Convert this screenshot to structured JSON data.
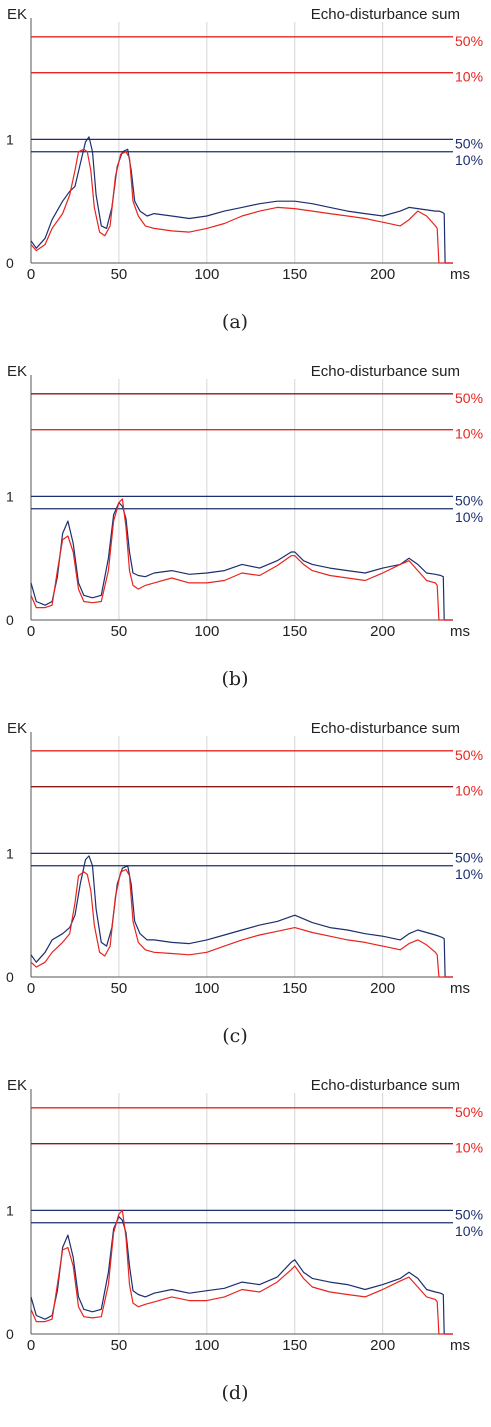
{
  "colors": {
    "blue": "#1c2f6e",
    "red": "#e8241f",
    "dark_red": "#8b1a1a",
    "grid": "#d6d6d6",
    "axis": "#555555"
  },
  "chart_data": [
    {
      "type": "line",
      "panel_label": "(a)",
      "title": "Echo-disturbance sum",
      "ylabel": "EK",
      "xlabel": "ms",
      "xlim": [
        0,
        240
      ],
      "ylim": [
        0,
        1.95
      ],
      "x_ticks": [
        "0",
        "50",
        "100",
        "150",
        "200"
      ],
      "y_ticks": [
        "0",
        "1"
      ],
      "threshold_lines": [
        {
          "label": "50%",
          "value": 1.83,
          "color": "red"
        },
        {
          "label": "10%",
          "value": 1.54,
          "color": "red"
        },
        {
          "label": "50%",
          "value": 1.0,
          "color": "blue"
        },
        {
          "label": "10%",
          "value": 0.9,
          "color": "blue"
        }
      ],
      "series": [
        {
          "color": "blue",
          "x": [
            0,
            3,
            8,
            12,
            18,
            22,
            25,
            28,
            31,
            33,
            35,
            37,
            40,
            43,
            46,
            49,
            52,
            55,
            57,
            59,
            62,
            66,
            70,
            80,
            90,
            100,
            110,
            120,
            130,
            140,
            150,
            160,
            170,
            180,
            190,
            200,
            210,
            215,
            220,
            225,
            230,
            232,
            234,
            235,
            235.5,
            240
          ],
          "y": [
            0.18,
            0.12,
            0.2,
            0.35,
            0.5,
            0.58,
            0.62,
            0.8,
            0.98,
            1.02,
            0.9,
            0.55,
            0.3,
            0.28,
            0.45,
            0.78,
            0.9,
            0.92,
            0.75,
            0.5,
            0.42,
            0.38,
            0.4,
            0.38,
            0.36,
            0.38,
            0.42,
            0.45,
            0.48,
            0.5,
            0.5,
            0.48,
            0.45,
            0.42,
            0.4,
            0.38,
            0.42,
            0.45,
            0.44,
            0.43,
            0.42,
            0.42,
            0.41,
            0.4,
            0.0,
            0.0
          ]
        },
        {
          "color": "red",
          "x": [
            0,
            3,
            8,
            12,
            18,
            22,
            25,
            27,
            30,
            32,
            34,
            36,
            39,
            42,
            45,
            48,
            51,
            54,
            56,
            58,
            61,
            65,
            70,
            80,
            90,
            100,
            110,
            120,
            130,
            140,
            150,
            160,
            170,
            180,
            190,
            200,
            210,
            215,
            220,
            225,
            230,
            231,
            232,
            240
          ],
          "y": [
            0.15,
            0.1,
            0.15,
            0.28,
            0.4,
            0.55,
            0.75,
            0.9,
            0.92,
            0.9,
            0.75,
            0.45,
            0.25,
            0.22,
            0.3,
            0.7,
            0.88,
            0.9,
            0.85,
            0.5,
            0.38,
            0.3,
            0.28,
            0.26,
            0.25,
            0.28,
            0.32,
            0.38,
            0.42,
            0.45,
            0.44,
            0.42,
            0.4,
            0.38,
            0.36,
            0.33,
            0.3,
            0.35,
            0.42,
            0.38,
            0.3,
            0.28,
            0.0,
            0.0
          ]
        }
      ]
    },
    {
      "type": "line",
      "panel_label": "(b)",
      "title": "Echo-disturbance sum",
      "ylabel": "EK",
      "xlabel": "ms",
      "xlim": [
        0,
        240
      ],
      "ylim": [
        0,
        1.95
      ],
      "x_ticks": [
        "0",
        "50",
        "100",
        "150",
        "200"
      ],
      "y_ticks": [
        "0",
        "1"
      ],
      "threshold_lines": [
        {
          "label": "50%",
          "value": 1.83,
          "color": "dark_red"
        },
        {
          "label": "10%",
          "value": 1.54,
          "color": "red"
        },
        {
          "label": "50%",
          "value": 1.0,
          "color": "blue"
        },
        {
          "label": "10%",
          "value": 0.9,
          "color": "blue"
        }
      ],
      "series": [
        {
          "color": "blue",
          "x": [
            0,
            3,
            8,
            12,
            15,
            18,
            21,
            24,
            27,
            30,
            35,
            40,
            44,
            47,
            50,
            52,
            54,
            56,
            58,
            61,
            65,
            70,
            80,
            90,
            100,
            110,
            120,
            130,
            140,
            148,
            150,
            155,
            160,
            170,
            180,
            190,
            200,
            210,
            215,
            220,
            225,
            230,
            233,
            234.5,
            235,
            240
          ],
          "y": [
            0.3,
            0.15,
            0.12,
            0.15,
            0.35,
            0.7,
            0.8,
            0.62,
            0.3,
            0.2,
            0.18,
            0.2,
            0.5,
            0.85,
            0.95,
            0.92,
            0.82,
            0.55,
            0.38,
            0.36,
            0.35,
            0.38,
            0.4,
            0.37,
            0.38,
            0.4,
            0.45,
            0.42,
            0.48,
            0.55,
            0.55,
            0.48,
            0.45,
            0.42,
            0.4,
            0.38,
            0.42,
            0.45,
            0.5,
            0.45,
            0.38,
            0.37,
            0.36,
            0.35,
            0.0,
            0.0
          ]
        },
        {
          "color": "red",
          "x": [
            0,
            3,
            8,
            12,
            15,
            18,
            21,
            24,
            27,
            30,
            35,
            40,
            44,
            47,
            50,
            52,
            54,
            56,
            58,
            61,
            65,
            70,
            80,
            90,
            100,
            110,
            120,
            130,
            140,
            148,
            150,
            155,
            160,
            170,
            180,
            190,
            200,
            210,
            215,
            220,
            225,
            230,
            231,
            232,
            240
          ],
          "y": [
            0.2,
            0.1,
            0.1,
            0.12,
            0.4,
            0.65,
            0.68,
            0.55,
            0.25,
            0.15,
            0.14,
            0.15,
            0.4,
            0.8,
            0.95,
            0.98,
            0.75,
            0.4,
            0.28,
            0.25,
            0.28,
            0.3,
            0.34,
            0.3,
            0.3,
            0.32,
            0.38,
            0.36,
            0.44,
            0.52,
            0.52,
            0.45,
            0.4,
            0.36,
            0.34,
            0.32,
            0.38,
            0.45,
            0.48,
            0.4,
            0.32,
            0.3,
            0.28,
            0.0,
            0.0
          ]
        }
      ]
    },
    {
      "type": "line",
      "panel_label": "(c)",
      "title": "Echo-disturbance sum",
      "ylabel": "EK",
      "xlabel": "ms",
      "xlim": [
        0,
        240
      ],
      "ylim": [
        0,
        1.95
      ],
      "x_ticks": [
        "0",
        "50",
        "100",
        "150",
        "200"
      ],
      "y_ticks": [
        "0",
        "1"
      ],
      "threshold_lines": [
        {
          "label": "50%",
          "value": 1.83,
          "color": "red"
        },
        {
          "label": "10%",
          "value": 1.54,
          "color": "dark_red"
        },
        {
          "label": "50%",
          "value": 1.0,
          "color": "blue"
        },
        {
          "label": "10%",
          "value": 0.9,
          "color": "blue"
        }
      ],
      "series": [
        {
          "color": "blue",
          "x": [
            0,
            3,
            8,
            12,
            18,
            22,
            25,
            28,
            31,
            33,
            35,
            37,
            40,
            43,
            46,
            49,
            52,
            55,
            57,
            59,
            62,
            66,
            70,
            80,
            90,
            100,
            110,
            120,
            130,
            140,
            150,
            160,
            170,
            180,
            190,
            200,
            210,
            215,
            220,
            225,
            230,
            232,
            234,
            235,
            235.5,
            240
          ],
          "y": [
            0.18,
            0.12,
            0.2,
            0.3,
            0.35,
            0.4,
            0.5,
            0.75,
            0.95,
            0.98,
            0.9,
            0.55,
            0.28,
            0.25,
            0.4,
            0.75,
            0.88,
            0.9,
            0.75,
            0.45,
            0.35,
            0.3,
            0.3,
            0.28,
            0.27,
            0.3,
            0.34,
            0.38,
            0.42,
            0.45,
            0.5,
            0.44,
            0.4,
            0.38,
            0.35,
            0.33,
            0.3,
            0.35,
            0.38,
            0.36,
            0.34,
            0.33,
            0.32,
            0.31,
            0.0,
            0.0
          ]
        },
        {
          "color": "red",
          "x": [
            0,
            3,
            8,
            12,
            18,
            22,
            25,
            27,
            30,
            32,
            34,
            36,
            39,
            42,
            45,
            48,
            51,
            54,
            56,
            58,
            61,
            65,
            70,
            80,
            90,
            100,
            110,
            120,
            130,
            140,
            150,
            160,
            170,
            180,
            190,
            200,
            210,
            215,
            220,
            225,
            230,
            231,
            232,
            240
          ],
          "y": [
            0.12,
            0.08,
            0.12,
            0.2,
            0.28,
            0.35,
            0.6,
            0.82,
            0.85,
            0.83,
            0.7,
            0.42,
            0.2,
            0.17,
            0.25,
            0.65,
            0.85,
            0.87,
            0.82,
            0.45,
            0.28,
            0.22,
            0.2,
            0.19,
            0.18,
            0.2,
            0.25,
            0.3,
            0.34,
            0.37,
            0.4,
            0.36,
            0.33,
            0.3,
            0.28,
            0.25,
            0.22,
            0.27,
            0.3,
            0.26,
            0.2,
            0.18,
            0.0,
            0.0
          ]
        }
      ]
    },
    {
      "type": "line",
      "panel_label": "(d)",
      "title": "Echo-disturbance sum",
      "ylabel": "EK",
      "xlabel": "ms",
      "xlim": [
        0,
        240
      ],
      "ylim": [
        0,
        1.95
      ],
      "x_ticks": [
        "0",
        "50",
        "100",
        "150",
        "200"
      ],
      "y_ticks": [
        "0",
        "1"
      ],
      "threshold_lines": [
        {
          "label": "50%",
          "value": 1.83,
          "color": "red"
        },
        {
          "label": "10%",
          "value": 1.54,
          "color": "dark_red"
        },
        {
          "label": "50%",
          "value": 1.0,
          "color": "blue"
        },
        {
          "label": "10%",
          "value": 0.9,
          "color": "blue"
        }
      ],
      "series": [
        {
          "color": "blue",
          "x": [
            0,
            3,
            8,
            12,
            15,
            18,
            21,
            24,
            27,
            30,
            35,
            40,
            44,
            47,
            50,
            52,
            54,
            56,
            58,
            61,
            65,
            70,
            80,
            90,
            100,
            110,
            120,
            130,
            140,
            148,
            150,
            155,
            160,
            170,
            180,
            190,
            200,
            210,
            215,
            220,
            225,
            230,
            233,
            234.5,
            235,
            240
          ],
          "y": [
            0.3,
            0.15,
            0.12,
            0.15,
            0.35,
            0.7,
            0.8,
            0.62,
            0.3,
            0.2,
            0.18,
            0.2,
            0.5,
            0.85,
            0.95,
            0.92,
            0.82,
            0.55,
            0.35,
            0.32,
            0.3,
            0.33,
            0.36,
            0.33,
            0.35,
            0.37,
            0.42,
            0.4,
            0.46,
            0.58,
            0.6,
            0.5,
            0.45,
            0.42,
            0.4,
            0.36,
            0.4,
            0.45,
            0.5,
            0.45,
            0.36,
            0.34,
            0.33,
            0.32,
            0.0,
            0.0
          ]
        },
        {
          "color": "red",
          "x": [
            0,
            3,
            8,
            12,
            15,
            18,
            21,
            24,
            27,
            30,
            35,
            40,
            44,
            47,
            50,
            52,
            54,
            56,
            58,
            61,
            65,
            70,
            80,
            90,
            100,
            110,
            120,
            130,
            140,
            148,
            150,
            155,
            160,
            170,
            180,
            190,
            200,
            210,
            215,
            220,
            225,
            230,
            231,
            232,
            240
          ],
          "y": [
            0.2,
            0.1,
            0.1,
            0.12,
            0.4,
            0.68,
            0.7,
            0.55,
            0.22,
            0.14,
            0.13,
            0.14,
            0.4,
            0.82,
            0.97,
            1.0,
            0.78,
            0.4,
            0.25,
            0.22,
            0.24,
            0.26,
            0.3,
            0.27,
            0.27,
            0.3,
            0.36,
            0.34,
            0.42,
            0.52,
            0.55,
            0.45,
            0.38,
            0.34,
            0.32,
            0.3,
            0.36,
            0.43,
            0.46,
            0.38,
            0.3,
            0.28,
            0.26,
            0.0,
            0.0
          ]
        }
      ]
    }
  ]
}
